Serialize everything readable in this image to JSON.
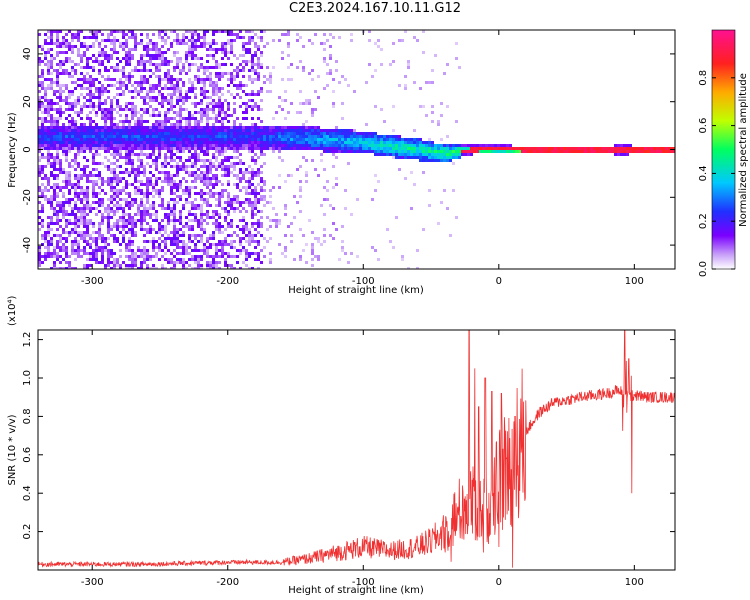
{
  "title": "C2E3.2024.167.10.11.G12",
  "chart_data": [
    {
      "type": "heatmap",
      "title": "C2E3.2024.167.10.11.G12",
      "xlabel": "Height of straight line (km)",
      "ylabel": "Frequency (Hz)",
      "xlim": [
        -340,
        130
      ],
      "ylim": [
        -50,
        50
      ],
      "xticks": [
        -300,
        -200,
        -100,
        0,
        100
      ],
      "yticks": [
        -40,
        -20,
        0,
        20,
        40
      ],
      "colorbar": {
        "label": "Normalized spectral amplitude",
        "range": [
          0,
          1
        ],
        "ticks": [
          0.0,
          0.2,
          0.4,
          0.6,
          0.8
        ],
        "colors": [
          "#ffffff",
          "#c8a0f8",
          "#7a00ff",
          "#2030ff",
          "#00c8ff",
          "#00ff60",
          "#c0ff00",
          "#ffaa00",
          "#ff2020",
          "#ff1090"
        ]
      },
      "ridge": {
        "x": [
          -180,
          -160,
          -140,
          -120,
          -100,
          -80,
          -60,
          -40,
          -20,
          0,
          20,
          40,
          60,
          80,
          90,
          100,
          130
        ],
        "freq_center": [
          6,
          5.5,
          5,
          4.5,
          3.5,
          2,
          0.5,
          -1,
          0.5,
          1,
          0.5,
          0.5,
          0.5,
          0.5,
          0.5,
          0.5,
          0.5
        ],
        "halfwidth": [
          5,
          5,
          5,
          5,
          4.5,
          4.5,
          4.5,
          3.5,
          2,
          1.5,
          1.5,
          1.5,
          1.5,
          1.5,
          2.5,
          1.5,
          1.5
        ],
        "amplitude": [
          0.25,
          0.3,
          0.35,
          0.35,
          0.4,
          0.45,
          0.45,
          0.5,
          0.6,
          0.7,
          0.75,
          0.8,
          0.8,
          0.85,
          0.85,
          0.85,
          0.9
        ],
        "noise_region_x": [
          -340,
          -175
        ]
      }
    },
    {
      "type": "line",
      "ylabel": "SNR (10 * v/v)",
      "y_multiplier": "(x10⁴)",
      "xlabel": "Height of straight line (km)",
      "xlim": [
        -340,
        130
      ],
      "ylim": [
        0,
        1.25
      ],
      "xticks": [
        -300,
        -200,
        -100,
        0,
        100
      ],
      "yticks": [
        0.2,
        0.4,
        0.6,
        0.8,
        1.0,
        1.2
      ],
      "series": [
        {
          "color": "#f03030",
          "x": [
            -340,
            -300,
            -260,
            -200,
            -160,
            -140,
            -120,
            -100,
            -80,
            -60,
            -50,
            -40,
            -30,
            -20,
            -10,
            0,
            10,
            20,
            30,
            40,
            60,
            80,
            90,
            95,
            100,
            110,
            130
          ],
          "y": [
            0.03,
            0.03,
            0.03,
            0.04,
            0.04,
            0.06,
            0.09,
            0.12,
            0.1,
            0.12,
            0.15,
            0.2,
            0.3,
            0.35,
            0.3,
            0.45,
            0.55,
            0.72,
            0.82,
            0.87,
            0.9,
            0.92,
            0.94,
            0.9,
            0.91,
            0.9,
            0.9
          ],
          "spikes": [
            {
              "x": -22,
              "y": 1.25
            },
            {
              "x": -18,
              "y": 1.05
            },
            {
              "x": -15,
              "y": 0.85
            },
            {
              "x": -10,
              "y": 1.0
            },
            {
              "x": -5,
              "y": 0.93
            },
            {
              "x": 2,
              "y": 0.92
            },
            {
              "x": 12,
              "y": 0.8
            },
            {
              "x": 93,
              "y": 1.25
            },
            {
              "x": 96,
              "y": 1.1
            },
            {
              "x": 98,
              "y": 0.4
            }
          ]
        }
      ]
    }
  ]
}
